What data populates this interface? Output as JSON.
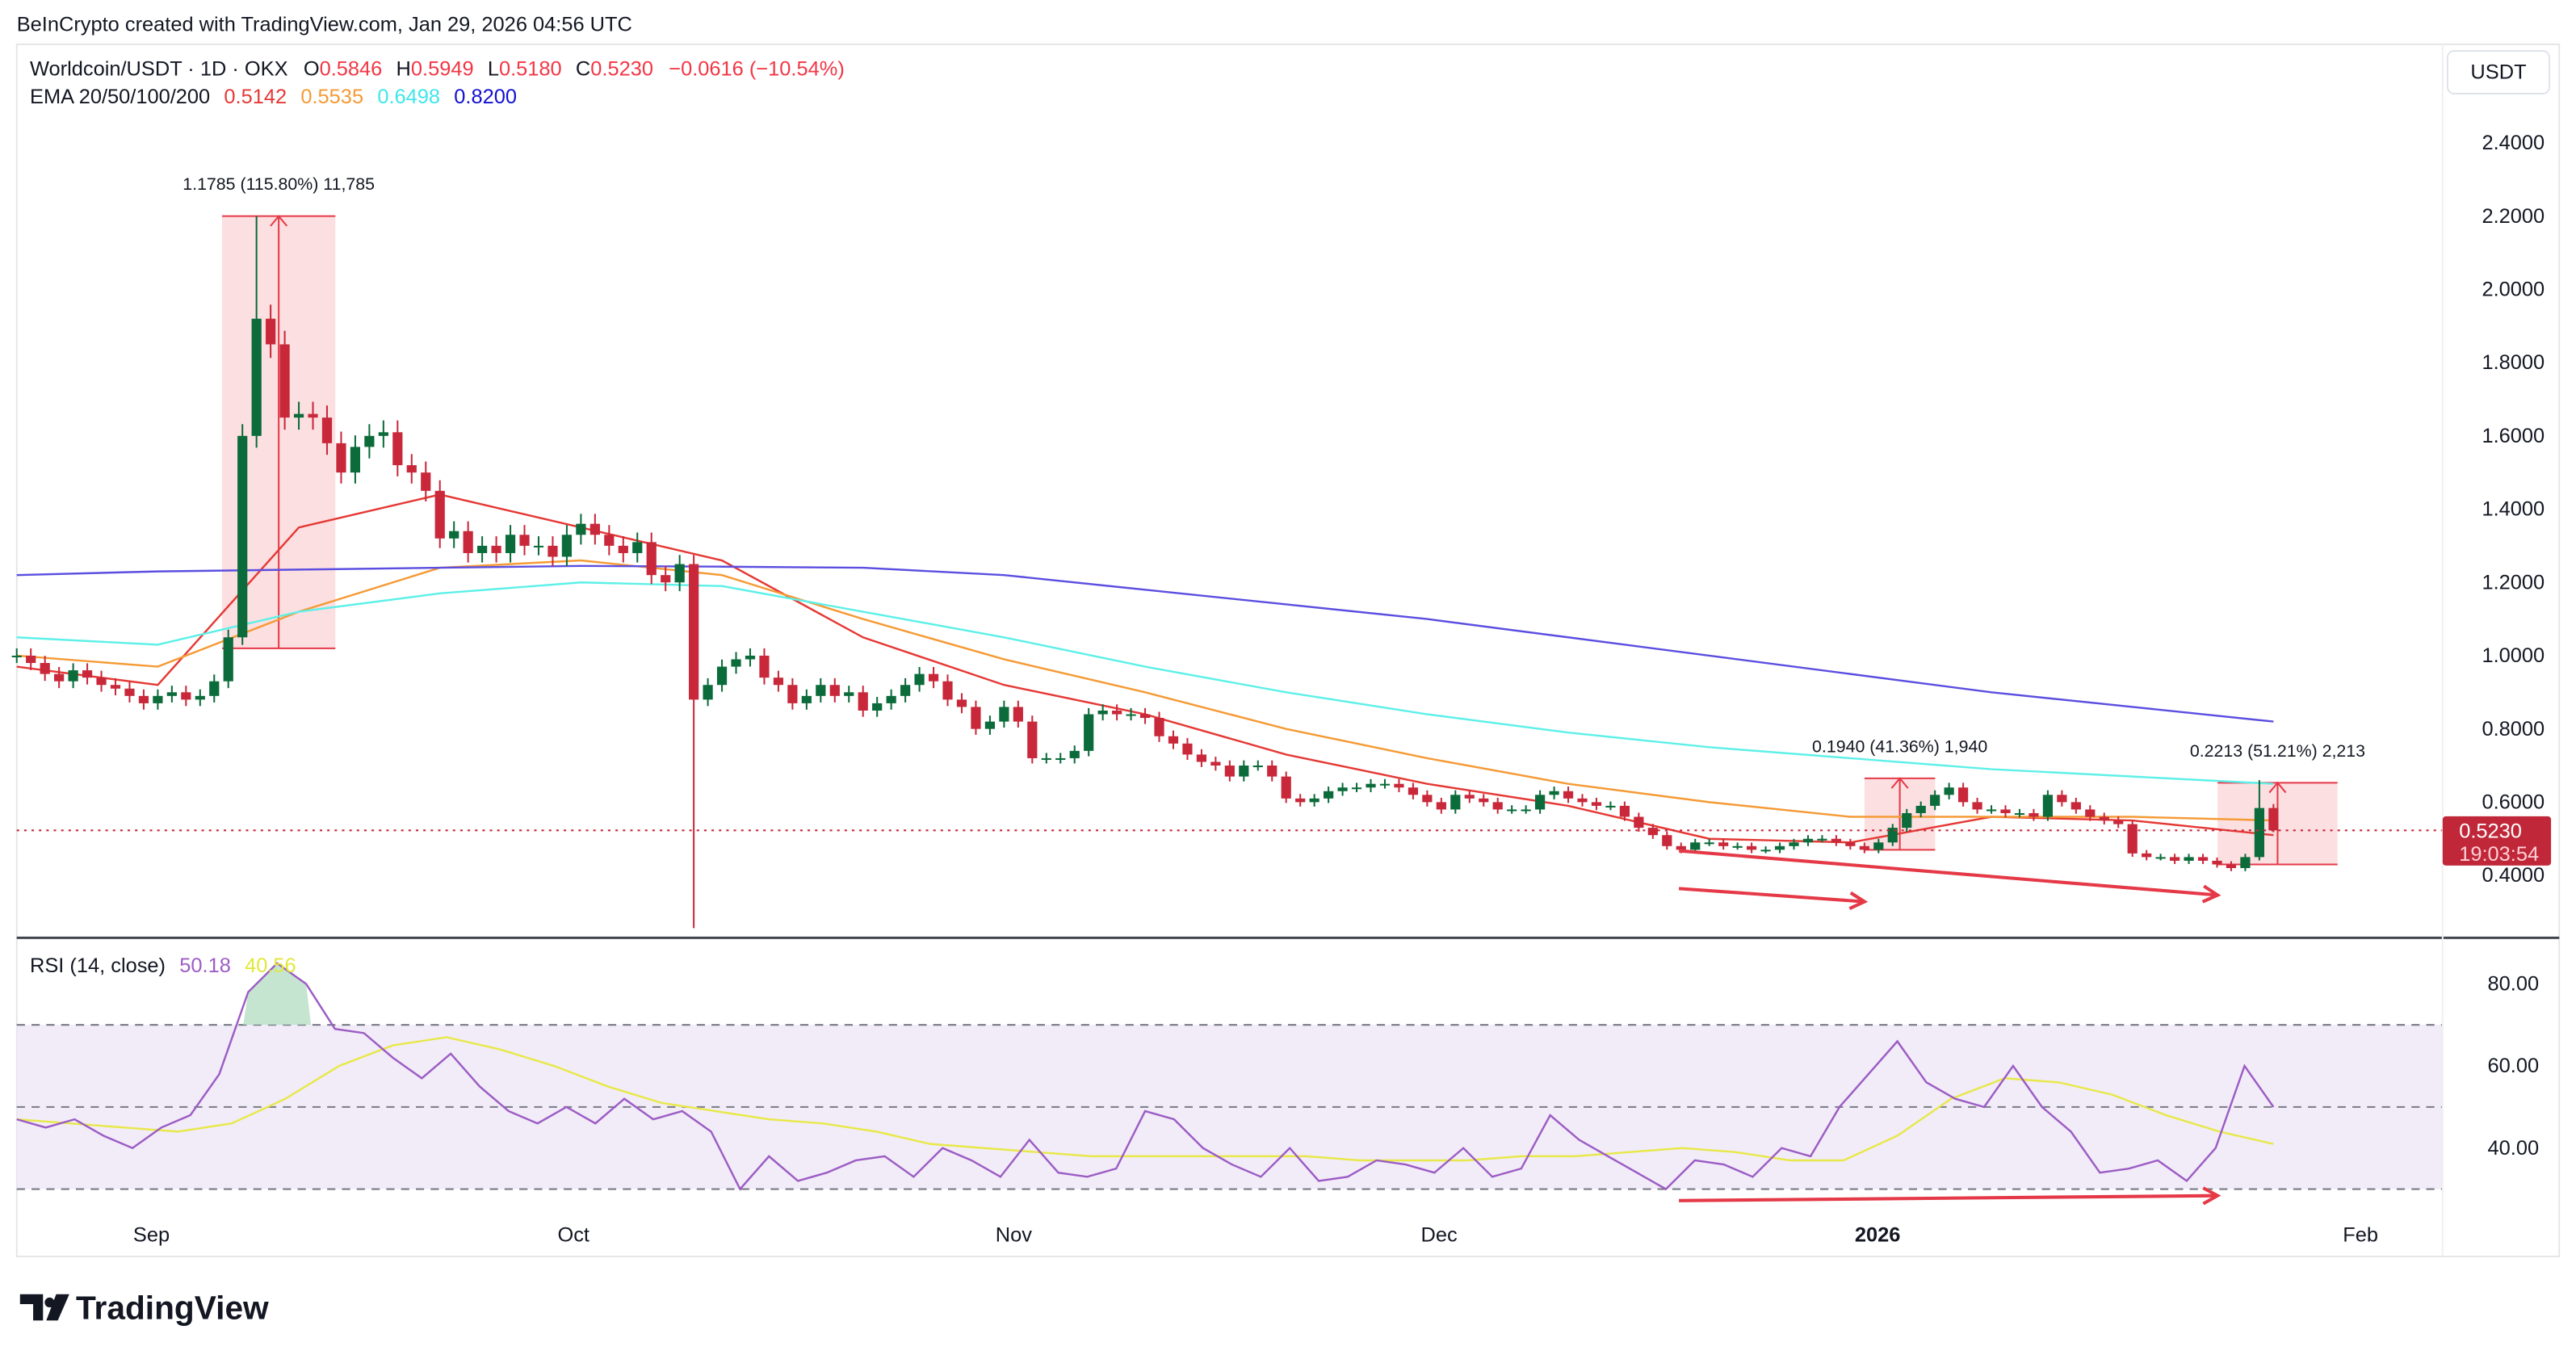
{
  "credit": "BeInCrypto created with TradingView.com, Jan 29, 2026 04:56 UTC",
  "legend": {
    "symbol": "Worldcoin/USDT · 1D · OKX",
    "o_label": "O",
    "o": "0.5846",
    "h_label": "H",
    "h": "0.5949",
    "l_label": "L",
    "l": "0.5180",
    "c_label": "C",
    "c": "0.5230",
    "change": "−0.0616 (−10.54%)",
    "ema_label": "EMA 20/50/100/200",
    "ema20": "0.5142",
    "ema50": "0.5535",
    "ema100": "0.6498",
    "ema200": "0.8200"
  },
  "currency_button": "USDT",
  "last_price": {
    "value": "0.5230",
    "countdown": "19:03:54"
  },
  "rsi_legend": {
    "label": "RSI (14, close)",
    "rsi": "50.18",
    "ma": "40.56"
  },
  "brand": "TradingView",
  "colors": {
    "up": "#089981",
    "down": "#f23645",
    "candle_up": "#0b6b3a",
    "candle_down": "#c8283a",
    "ema20": "#e53935",
    "ema50": "#f59a35",
    "ema100": "#5ef0e8",
    "ema200": "#5b4ee0",
    "rsi": "#9c5cc4",
    "rsi_ma": "#e8e84a",
    "measure_fill": "#fbd9dc",
    "arrow": "#e53947"
  },
  "chart_data": [
    {
      "type": "candlestick",
      "x_ticks": [
        "Sep",
        "Oct",
        "Nov",
        "Dec",
        "2026",
        "Feb"
      ],
      "y_ticks": [
        "2.4000",
        "2.2000",
        "2.0000",
        "1.8000",
        "1.6000",
        "1.4000",
        "1.2000",
        "1.0000",
        "0.8000",
        "0.6000",
        "0.4000"
      ],
      "ylim": [
        0.4,
        2.4
      ],
      "close": [
        1.0,
        0.98,
        0.95,
        0.93,
        0.96,
        0.94,
        0.92,
        0.91,
        0.89,
        0.87,
        0.89,
        0.9,
        0.88,
        0.89,
        0.93,
        1.05,
        1.6,
        1.92,
        1.85,
        1.65,
        1.66,
        1.65,
        1.58,
        1.5,
        1.57,
        1.6,
        1.61,
        1.52,
        1.5,
        1.45,
        1.32,
        1.34,
        1.28,
        1.3,
        1.28,
        1.33,
        1.3,
        1.3,
        1.27,
        1.33,
        1.36,
        1.33,
        1.3,
        1.28,
        1.31,
        1.22,
        1.2,
        1.25,
        0.88,
        0.92,
        0.97,
        0.99,
        1.0,
        0.94,
        0.92,
        0.87,
        0.89,
        0.92,
        0.89,
        0.9,
        0.85,
        0.87,
        0.89,
        0.92,
        0.95,
        0.93,
        0.88,
        0.86,
        0.8,
        0.82,
        0.86,
        0.82,
        0.72,
        0.72,
        0.72,
        0.74,
        0.84,
        0.85,
        0.84,
        0.84,
        0.83,
        0.78,
        0.76,
        0.73,
        0.71,
        0.7,
        0.67,
        0.7,
        0.7,
        0.67,
        0.61,
        0.6,
        0.61,
        0.63,
        0.64,
        0.64,
        0.65,
        0.65,
        0.64,
        0.62,
        0.6,
        0.58,
        0.62,
        0.61,
        0.6,
        0.58,
        0.58,
        0.58,
        0.62,
        0.63,
        0.61,
        0.6,
        0.59,
        0.59,
        0.56,
        0.53,
        0.51,
        0.48,
        0.47,
        0.49,
        0.49,
        0.48,
        0.48,
        0.47,
        0.47,
        0.48,
        0.49,
        0.5,
        0.5,
        0.49,
        0.48,
        0.47,
        0.49,
        0.53,
        0.57,
        0.59,
        0.62,
        0.64,
        0.6,
        0.58,
        0.58,
        0.57,
        0.57,
        0.56,
        0.62,
        0.6,
        0.58,
        0.56,
        0.55,
        0.54,
        0.46,
        0.45,
        0.45,
        0.44,
        0.45,
        0.44,
        0.43,
        0.42,
        0.45,
        0.584,
        0.523
      ],
      "ema": {
        "ema20": [
          0.97,
          0.92,
          1.35,
          1.44,
          1.35,
          1.26,
          1.05,
          0.92,
          0.84,
          0.73,
          0.65,
          0.59,
          0.5,
          0.49,
          0.56,
          0.55,
          0.51
        ],
        "ema50": [
          1.0,
          0.97,
          1.12,
          1.24,
          1.26,
          1.22,
          1.1,
          0.99,
          0.9,
          0.8,
          0.72,
          0.65,
          0.6,
          0.56,
          0.56,
          0.56,
          0.55
        ],
        "ema100": [
          1.05,
          1.03,
          1.12,
          1.17,
          1.2,
          1.19,
          1.12,
          1.05,
          0.97,
          0.9,
          0.84,
          0.79,
          0.75,
          0.72,
          0.69,
          0.67,
          0.65
        ],
        "ema200": [
          1.22,
          1.23,
          1.235,
          1.24,
          1.245,
          1.243,
          1.24,
          1.22,
          1.18,
          1.14,
          1.1,
          1.05,
          1.0,
          0.95,
          0.9,
          0.86,
          0.82
        ]
      },
      "measurements": [
        {
          "label": "1.1785 (115.80%) 11,785",
          "from": 1.02,
          "to": 2.2
        },
        {
          "label": "0.1940 (41.36%) 1,940",
          "from": 0.47,
          "to": 0.665
        },
        {
          "label": "0.2213 (51.21%) 2,213",
          "from": 0.43,
          "to": 0.653
        }
      ]
    },
    {
      "type": "line",
      "title": "RSI (14, close)",
      "y_ticks": [
        "80.00",
        "60.00",
        "40.00"
      ],
      "bands": [
        30,
        50,
        70
      ],
      "rsi": [
        47,
        45,
        47,
        43,
        40,
        45,
        48,
        58,
        78,
        85,
        80,
        69,
        68,
        62,
        57,
        63,
        55,
        49,
        46,
        50,
        46,
        52,
        47,
        49,
        44,
        30,
        38,
        32,
        34,
        37,
        38,
        33,
        40,
        37,
        33,
        42,
        34,
        33,
        35,
        49,
        47,
        40,
        36,
        33,
        40,
        32,
        33,
        37,
        36,
        34,
        40,
        33,
        35,
        48,
        42,
        38,
        34,
        30,
        37,
        36,
        33,
        40,
        38,
        50,
        58,
        66,
        56,
        52,
        50,
        60,
        50,
        44,
        34,
        35,
        37,
        32,
        40,
        60,
        50
      ],
      "rsi_ma": [
        47,
        46,
        45,
        44,
        46,
        52,
        60,
        65,
        67,
        64,
        60,
        55,
        51,
        49,
        47,
        46,
        44,
        41,
        40,
        39,
        38,
        38,
        38,
        38,
        38,
        37,
        37,
        37,
        38,
        38,
        39,
        40,
        39,
        37,
        37,
        43,
        52,
        57,
        56,
        53,
        48,
        44,
        41
      ]
    }
  ]
}
